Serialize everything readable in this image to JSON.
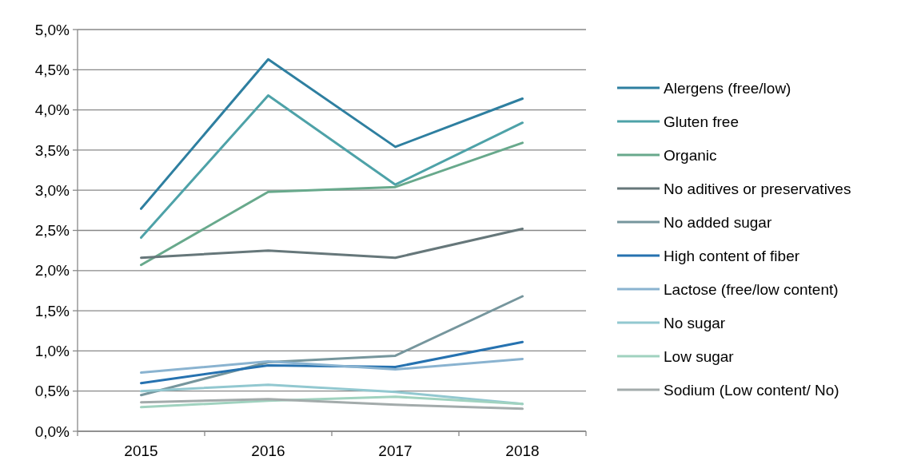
{
  "chart_data": {
    "type": "line",
    "categories": [
      "2015",
      "2016",
      "2017",
      "2018"
    ],
    "ylim": [
      0,
      5
    ],
    "yticks": [
      {
        "value": 0,
        "label": "0,0%"
      },
      {
        "value": 0.5,
        "label": "0,5%"
      },
      {
        "value": 1,
        "label": "1,0%"
      },
      {
        "value": 1.5,
        "label": "1,5%"
      },
      {
        "value": 2,
        "label": "2,0%"
      },
      {
        "value": 2.5,
        "label": "2,5%"
      },
      {
        "value": 3,
        "label": "3,0%"
      },
      {
        "value": 3.5,
        "label": "3,5%"
      },
      {
        "value": 4,
        "label": "4,0%"
      },
      {
        "value": 4.5,
        "label": "4,5%"
      },
      {
        "value": 5,
        "label": "5,0%"
      }
    ],
    "grid": "y",
    "legend": "right",
    "marker": "none",
    "line_style": "solid",
    "series": [
      {
        "name": "Alergens (free/low)",
        "color": "#2e7fa0",
        "values": [
          2.77,
          4.63,
          3.54,
          4.14
        ]
      },
      {
        "name": "Gluten free",
        "color": "#4ea2a8",
        "values": [
          2.41,
          4.18,
          3.07,
          3.84
        ]
      },
      {
        "name": "Organic",
        "color": "#68a98c",
        "values": [
          2.07,
          2.98,
          3.04,
          3.59
        ]
      },
      {
        "name": "No aditives or preservatives",
        "color": "#66777a",
        "values": [
          2.16,
          2.25,
          2.16,
          2.52
        ]
      },
      {
        "name": "No added sugar",
        "color": "#76969d",
        "values": [
          0.45,
          0.86,
          0.94,
          1.68
        ]
      },
      {
        "name": "High content of fiber",
        "color": "#2672b0",
        "values": [
          0.6,
          0.82,
          0.8,
          1.11
        ]
      },
      {
        "name": "Lactose  (free/low content)",
        "color": "#8ab3d0",
        "values": [
          0.73,
          0.87,
          0.77,
          0.9
        ]
      },
      {
        "name": "No sugar",
        "color": "#92c8d0",
        "values": [
          0.5,
          0.58,
          0.49,
          0.34
        ]
      },
      {
        "name": "Low sugar",
        "color": "#a0d2bf",
        "values": [
          0.3,
          0.38,
          0.43,
          0.34
        ]
      },
      {
        "name": "Sodium (Low content/ No)",
        "color": "#a3abab",
        "values": [
          0.36,
          0.4,
          0.33,
          0.28
        ]
      }
    ]
  }
}
